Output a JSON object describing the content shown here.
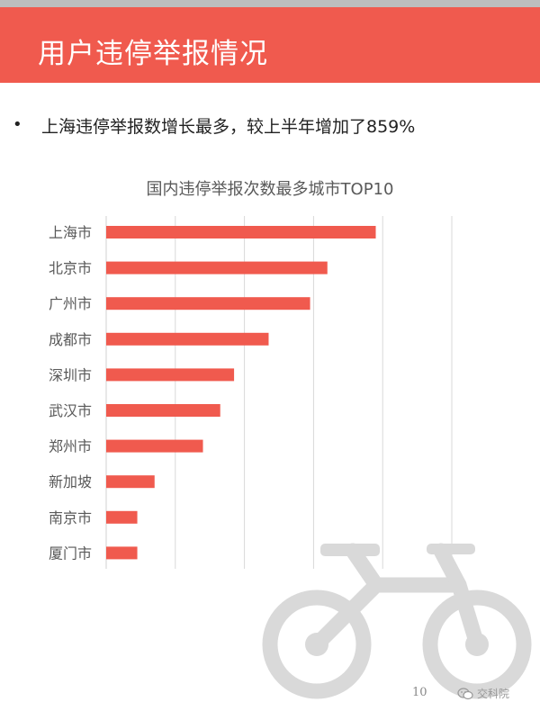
{
  "header": {
    "title": "用户违停举报情况"
  },
  "bullet": {
    "marker": "•",
    "text": "上海违停举报数增长最多，较上半年增加了859%"
  },
  "colors": {
    "header_bg": "#f05a4e",
    "bar": "#f05a4e",
    "watermark": "#d9d9d9",
    "gridline": "#d9d9d9"
  },
  "chart_data": {
    "type": "bar",
    "orientation": "horizontal",
    "title": "国内违停举报次数最多城市TOP10",
    "categories": [
      "上海市",
      "北京市",
      "广州市",
      "成都市",
      "深圳市",
      "武汉市",
      "郑州市",
      "新加坡",
      "南京市",
      "厦门市"
    ],
    "values": [
      78,
      64,
      59,
      47,
      37,
      33,
      28,
      14,
      9,
      9
    ],
    "xlim": [
      0,
      100
    ],
    "x_gridlines": [
      0,
      20,
      40,
      60,
      80,
      100
    ],
    "y_axis_line": true,
    "grid": true,
    "legend": "none",
    "x_tick_labels_shown": false
  },
  "watermark": {
    "icon": "bicycle-icon"
  },
  "footer": {
    "page_number": "10",
    "brand": "交科院",
    "brand_icon": "wechat-icon"
  }
}
